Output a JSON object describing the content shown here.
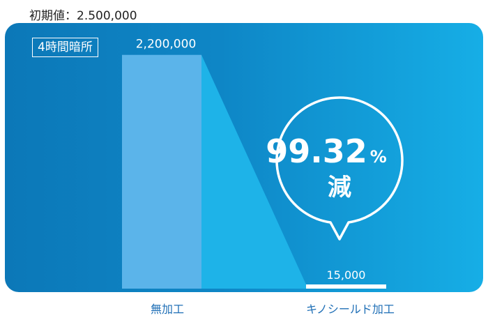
{
  "initial_value_label": "初期値：2.500,000",
  "condition_badge": "4時間暗所",
  "reduction": {
    "percent": "99.32",
    "percent_sign": "%",
    "label": "減"
  },
  "colors": {
    "bar_untreated": "#5bb4ea",
    "connector": "#1eb3e8",
    "bar_treated": "#ffffff",
    "category_text": "#1f6fb6"
  },
  "chart_data": {
    "type": "bar",
    "title": "",
    "xlabel": "",
    "ylabel": "",
    "categories": [
      "無加工",
      "キノシールド加工"
    ],
    "values": [
      2200000,
      15000
    ],
    "data_labels": [
      "2,200,000",
      "15,000"
    ],
    "ylim": [
      0,
      2500000
    ],
    "grid": false,
    "legend": "none"
  }
}
